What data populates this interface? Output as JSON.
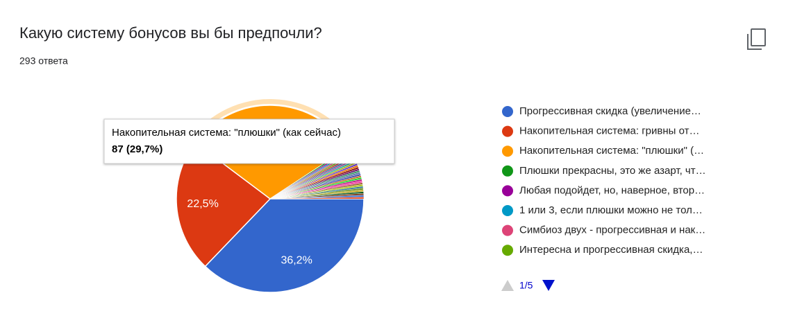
{
  "chart_data": {
    "type": "pie",
    "title": "Какую систему бонусов вы бы предпочли?",
    "subtitle": "293 ответа",
    "categories": [
      "Прогрессивная скидка (увеличение…",
      "Накопительная система: гривны от…",
      "Накопительная система: \"плюшки\" (…",
      "Плюшки прекрасны, это же азарт, чт…",
      "Любая подойдет, но, наверное, втор…",
      "1 или 3, если плюшки можно не тол…",
      "Симбиоз двух - прогрессивная и нак…",
      "Интересна и прогрессивная скидка,…",
      null,
      null,
      null,
      null,
      null,
      null,
      null,
      null,
      null,
      null,
      null,
      null,
      null,
      null,
      null,
      null,
      null,
      null,
      null,
      null,
      null,
      null,
      null,
      null,
      null
    ],
    "values": [
      36.2,
      22.5,
      29.7,
      0.3,
      0.3,
      0.3,
      0.3,
      0.3,
      0.3,
      0.3,
      0.3,
      0.3,
      0.3,
      0.3,
      0.3,
      0.3,
      0.3,
      0.3,
      0.3,
      0.3,
      0.3,
      0.3,
      0.3,
      0.3,
      0.3,
      0.3,
      0.3,
      0.3,
      0.3,
      0.3,
      0.3,
      0.3,
      0.3
    ],
    "value_labels": [
      "36,2%",
      "22,5%",
      null,
      null,
      null,
      null,
      null,
      null,
      null,
      null,
      null,
      null,
      null,
      null,
      null,
      null,
      null,
      null,
      null,
      null,
      null,
      null,
      null,
      null,
      null,
      null,
      null,
      null,
      null,
      null,
      null,
      null,
      null
    ],
    "colors": [
      "#3366cc",
      "#dc3912",
      "#ff9900",
      "#109618",
      "#990099",
      "#0099c6",
      "#dd4477",
      "#66aa00",
      "#b82e2e",
      "#316395",
      "#994499",
      "#22aa99",
      "#aaaa11",
      "#6633cc",
      "#e67300",
      "#8b0707",
      "#651067",
      "#329262",
      "#5574a6",
      "#3b3eac",
      "#b77322",
      "#16d620",
      "#b91383",
      "#f4359e",
      "#9c5935",
      "#a9c413",
      "#2a778d",
      "#668d1c",
      "#bea413",
      "#0c5922",
      "#743411",
      "#3366cc",
      "#dc3912"
    ],
    "tooltip": {
      "label": "Накопительная система: \"плюшки\" (как сейчас)",
      "text": "87 (29,7%)"
    },
    "highlight": 2,
    "legend_page": "1/5"
  }
}
